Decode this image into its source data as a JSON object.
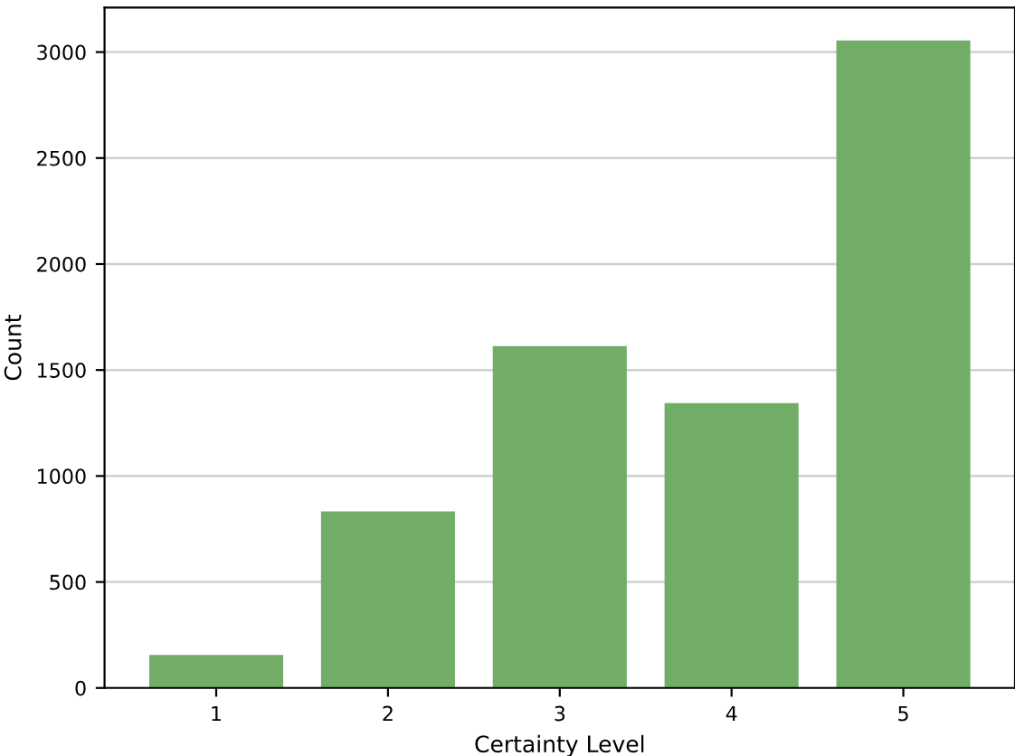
{
  "chart_data": {
    "type": "bar",
    "xlabel": "Certainty Level",
    "ylabel": "Count",
    "categories": [
      "1",
      "2",
      "3",
      "4",
      "5"
    ],
    "values": [
      156,
      833,
      1613,
      1344,
      3055
    ],
    "color": "#72ad68",
    "ylim": [
      0,
      3210
    ],
    "yticks": [
      0,
      500,
      1000,
      1500,
      2000,
      2500,
      3000
    ],
    "grid": "y"
  }
}
